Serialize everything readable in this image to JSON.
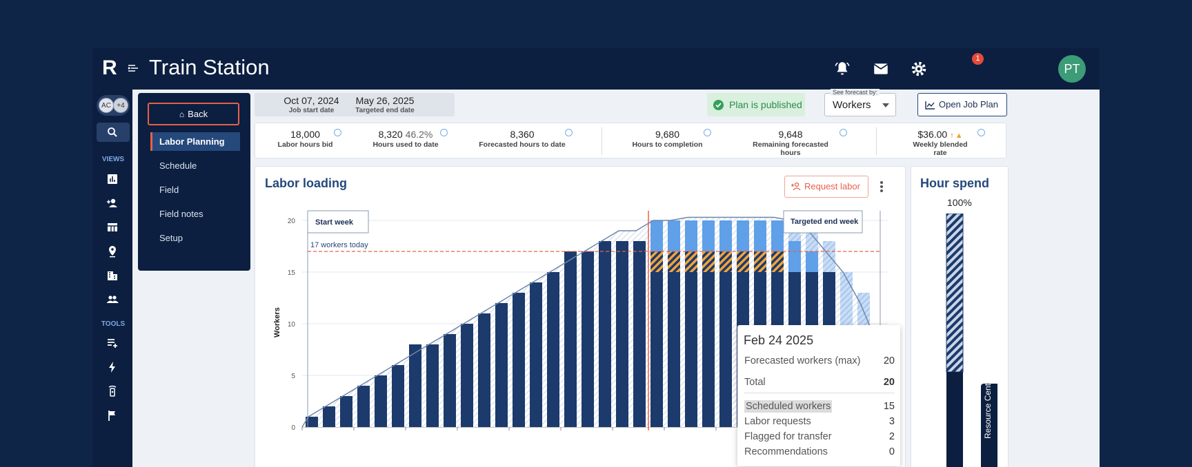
{
  "app": {
    "logo": "R",
    "title": "Train Station",
    "notification_count": "1",
    "user_initials": "PT"
  },
  "rail": {
    "avatars": [
      "AC",
      "+4"
    ],
    "views_label": "VIEWS",
    "tools_label": "TOOLS"
  },
  "subnav": {
    "back_label": "Back",
    "items": [
      "Labor Planning",
      "Schedule",
      "Field",
      "Field notes",
      "Setup"
    ]
  },
  "dates": {
    "start": "Oct 07, 2024",
    "start_label": "Job start date",
    "end": "May 26, 2025",
    "end_label": "Targeted end date"
  },
  "status": {
    "published": "Plan is published"
  },
  "forecast": {
    "label": "See forecast by:",
    "value": "Workers"
  },
  "open_plan": "Open Job Plan",
  "stats": [
    {
      "value": "18,000",
      "label": "Labor hours bid"
    },
    {
      "value": "8,320",
      "extra": "46.2%",
      "label": "Hours used to date"
    },
    {
      "value": "8,360",
      "label": "Forecasted hours to date"
    },
    {
      "value": "9,680",
      "label": "Hours to completion"
    },
    {
      "value": "9,648",
      "label": "Remaining forecasted hours"
    },
    {
      "value": "$36.00",
      "label": "Weekly blended rate"
    }
  ],
  "colors": {
    "navy": "#0c1f40",
    "accent": "#e8604a",
    "scheduled": "#1c3a6b",
    "requests": "#5fa0e8",
    "flagged": "#f2a33a",
    "recommend": "#b8d4f3"
  },
  "labor_loading": {
    "title": "Labor loading",
    "request_label": "Request labor"
  },
  "hour_spend": {
    "title": "Hour spend",
    "percent": "100%"
  },
  "help": "Resource Center",
  "chart_data": {
    "type": "bar",
    "title": "Labor loading",
    "ylabel": "Workers",
    "ylim": [
      0,
      20
    ],
    "yticks": [
      0,
      5,
      10,
      15,
      20
    ],
    "today_line": {
      "value": 17,
      "label": "17 workers today"
    },
    "annotations": [
      "Start week",
      "Targeted end week"
    ],
    "today_index": 20,
    "series": [
      {
        "name": "Scheduled workers",
        "values": [
          1,
          2,
          3,
          4,
          5,
          6,
          8,
          8,
          9,
          10,
          11,
          12,
          13,
          14,
          15,
          17,
          17,
          18,
          18,
          18,
          15,
          15,
          15,
          15,
          15,
          15,
          15,
          15,
          15,
          15,
          15,
          3,
          3,
          3
        ]
      },
      {
        "name": "Flagged for transfer",
        "values": [
          0,
          0,
          0,
          0,
          0,
          0,
          0,
          0,
          0,
          0,
          0,
          0,
          0,
          0,
          0,
          0,
          0,
          0,
          0,
          0,
          2,
          2,
          2,
          2,
          2,
          2,
          2,
          2,
          0,
          0,
          0,
          1,
          0,
          0
        ]
      },
      {
        "name": "Labor requests",
        "values": [
          0,
          0,
          0,
          0,
          0,
          0,
          0,
          0,
          0,
          0,
          0,
          0,
          0,
          0,
          0,
          0,
          0,
          0,
          0,
          0,
          3,
          3,
          3,
          3,
          3,
          3,
          3,
          3,
          3,
          2,
          0,
          4,
          0,
          0
        ]
      },
      {
        "name": "Recommendations",
        "values": [
          0,
          0,
          0,
          0,
          0,
          0,
          0,
          0,
          0,
          0,
          0,
          0,
          0,
          0,
          0,
          0,
          0,
          0,
          0,
          0,
          0,
          0,
          2,
          2,
          2,
          2,
          2,
          2,
          1,
          2,
          3,
          7,
          10,
          3
        ]
      }
    ],
    "forecast_max": [
      1,
      2,
      3,
      4,
      5,
      6,
      7,
      8,
      9,
      10,
      11,
      12,
      13,
      14,
      15,
      16,
      17,
      18,
      19,
      19,
      20,
      20,
      21,
      21,
      21,
      21,
      21,
      21,
      20,
      19,
      17,
      15,
      12,
      8
    ],
    "tooltip": {
      "date": "Feb 24 2025",
      "rows": [
        {
          "label": "Forecasted workers (max)",
          "value": "20"
        },
        {
          "label": "Total",
          "value": "20"
        },
        {
          "label": "Scheduled workers",
          "value": "15"
        },
        {
          "label": "Labor requests",
          "value": "3"
        },
        {
          "label": "Flagged for transfer",
          "value": "2"
        },
        {
          "label": "Recommendations",
          "value": "0"
        }
      ]
    }
  }
}
